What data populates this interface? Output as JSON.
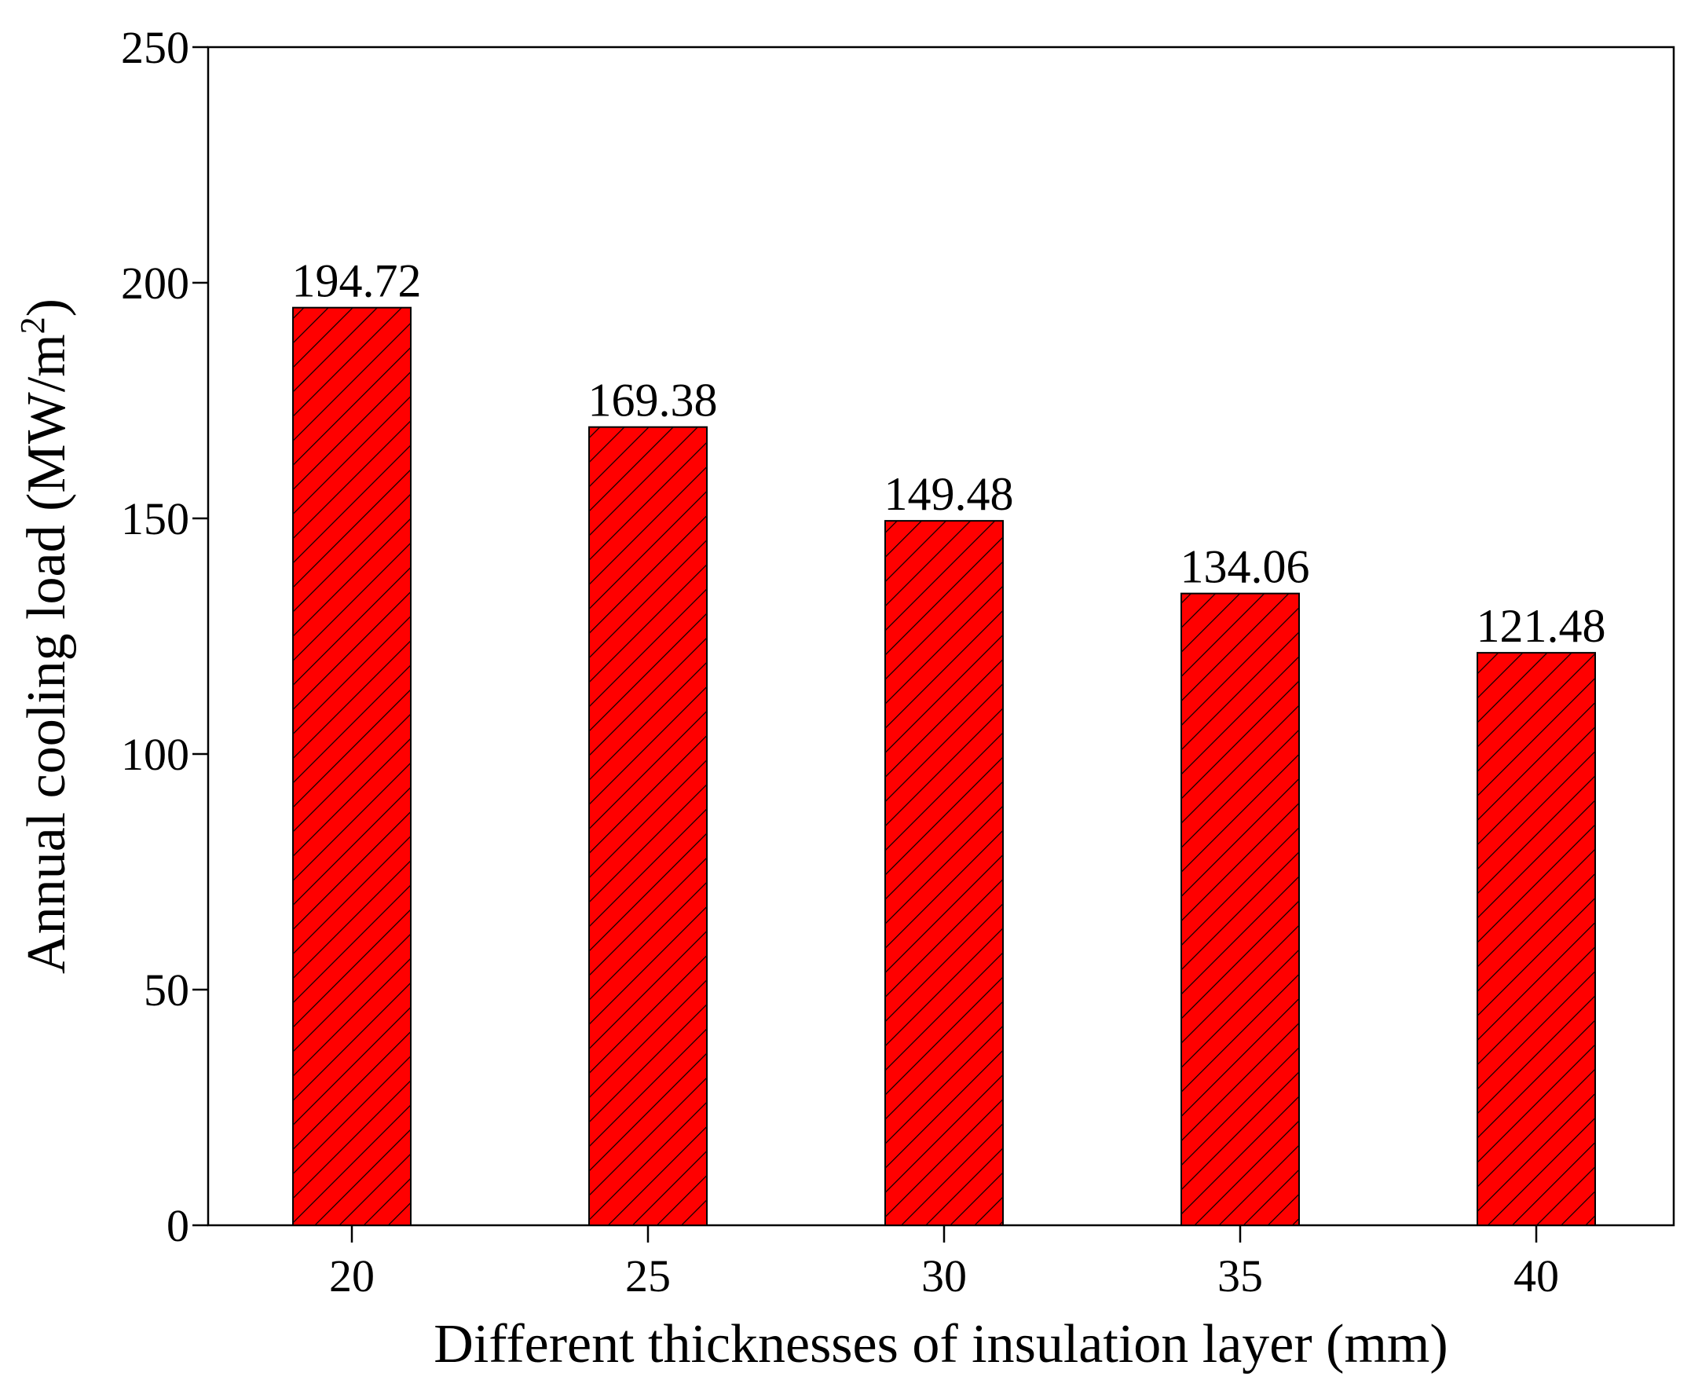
{
  "chart_data": {
    "type": "bar",
    "categories": [
      "20",
      "25",
      "30",
      "35",
      "40"
    ],
    "values": [
      194.72,
      169.38,
      149.48,
      134.06,
      121.48
    ],
    "data_labels": [
      "194.72",
      "169.38",
      "149.48",
      "134.06",
      "121.48"
    ],
    "xlabel": "Different thicknesses of insulation layer (mm)",
    "ylabel": {
      "main": "Annual cooling load (MW/m",
      "superscript": "2",
      "close": ")"
    },
    "ylim": [
      0,
      250
    ],
    "yticks": [
      "0",
      "50",
      "100",
      "150",
      "200",
      "250"
    ],
    "grid": false,
    "bar_color": "#ff0000",
    "hatch": "diagonal"
  }
}
